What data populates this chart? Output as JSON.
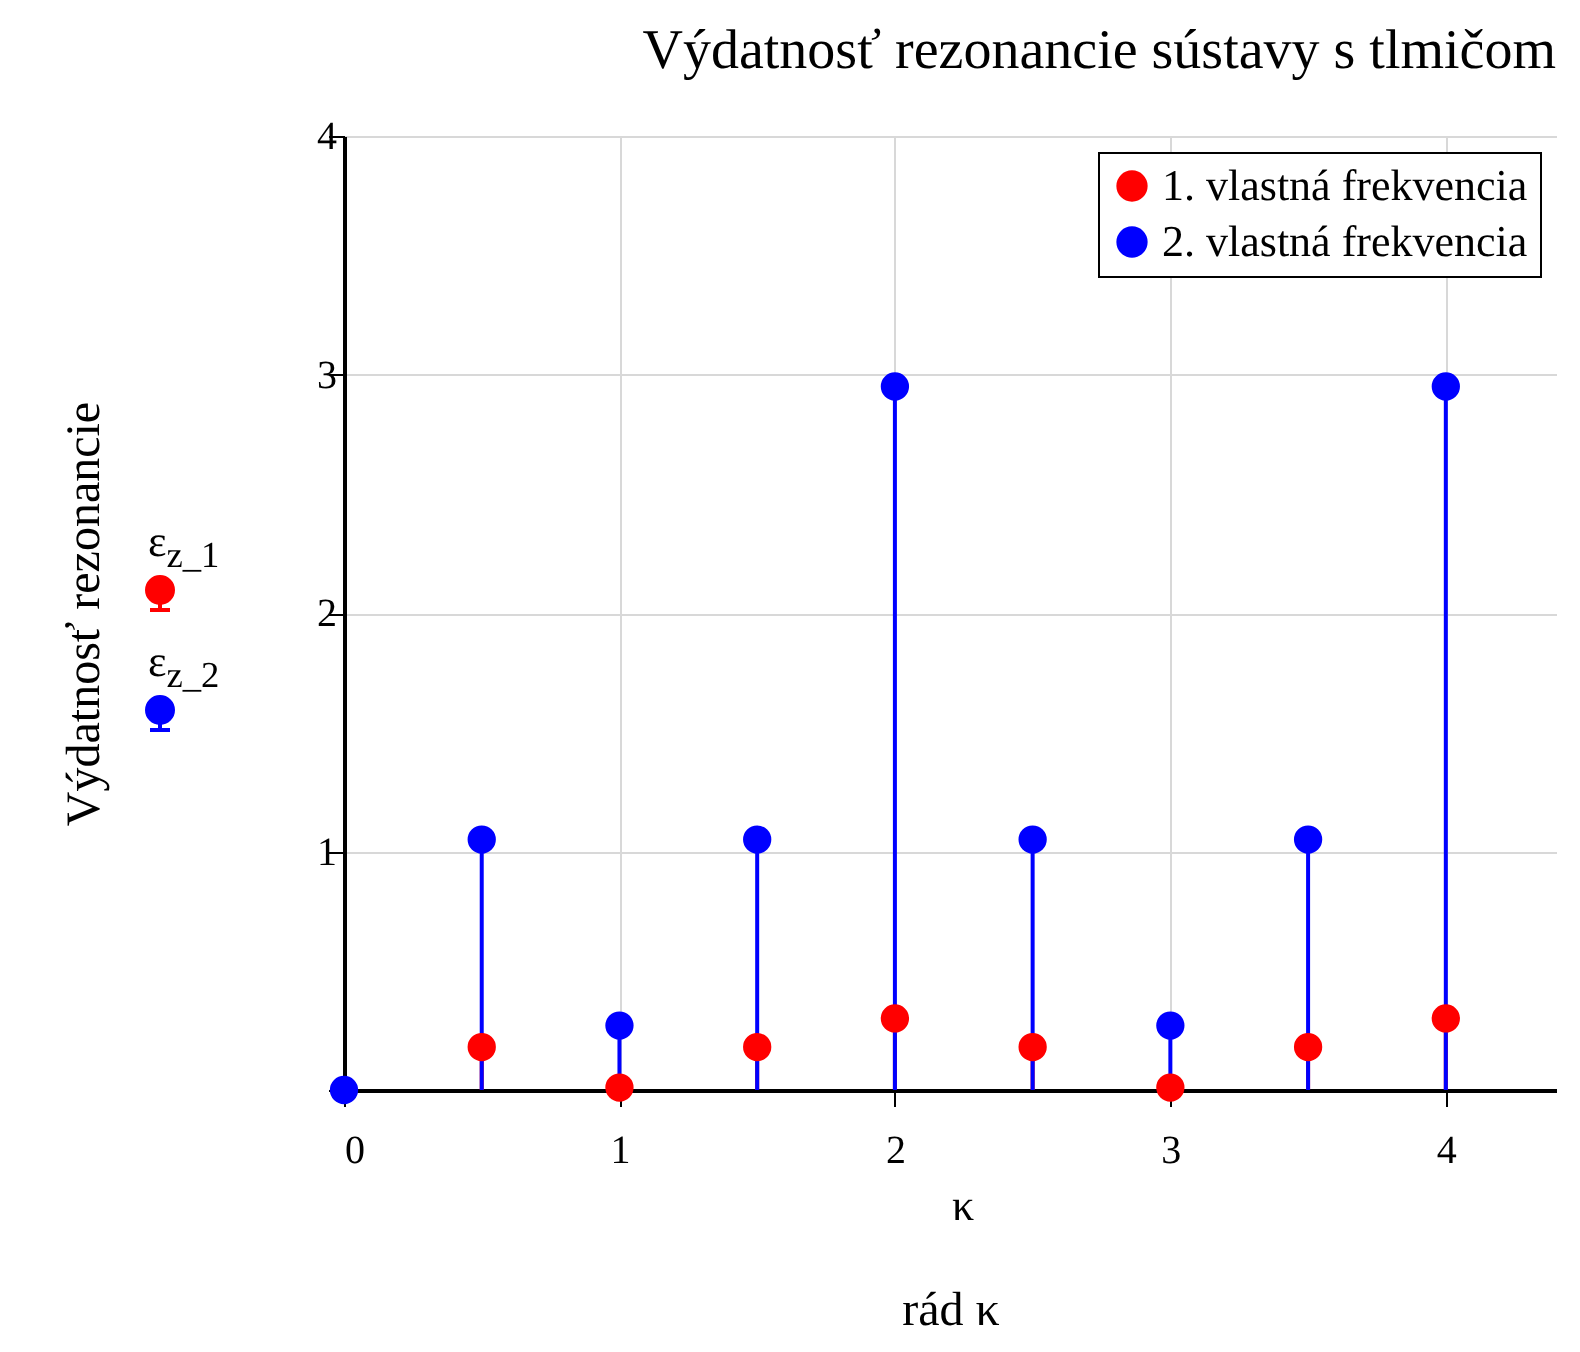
{
  "chart_data": {
    "type": "lollipop",
    "title": "Výdatnosť rezonancie sústavy s tlmičom",
    "xlabel": "rád κ",
    "ylabel": "Výdatnosť rezonancie",
    "annotations": [
      "ε$_{z_1}$",
      "ε$_{z_2}$",
      "κ"
    ],
    "series": [
      {
        "name": "1. vlastná frekvencia",
        "color": "#ff0000",
        "x": [
          0.5,
          1,
          1.5,
          2,
          2.5,
          3,
          3.5,
          4
        ],
        "values": [
          0.18,
          0.01,
          0.18,
          0.3,
          0.18,
          0.01,
          0.18,
          0.3
        ]
      },
      {
        "name": "2. vlastná frekvencia",
        "color": "#0000ff",
        "x": [
          0,
          0.5,
          1,
          1.5,
          2,
          2.5,
          3,
          3.5,
          4
        ],
        "values": [
          0,
          1.05,
          0.27,
          1.05,
          2.95,
          1.05,
          0.27,
          1.05,
          2.95
        ]
      }
    ],
    "xlim": [
      0,
      4.4
    ],
    "xticks": [
      0,
      1,
      2,
      3,
      4
    ],
    "ylim": [
      0,
      4
    ],
    "yticks": [
      {
        "value": 0,
        "label": null
      },
      1,
      2,
      3,
      4
    ],
    "grid": true,
    "legend": "top right",
    "marker": "circle"
  }
}
